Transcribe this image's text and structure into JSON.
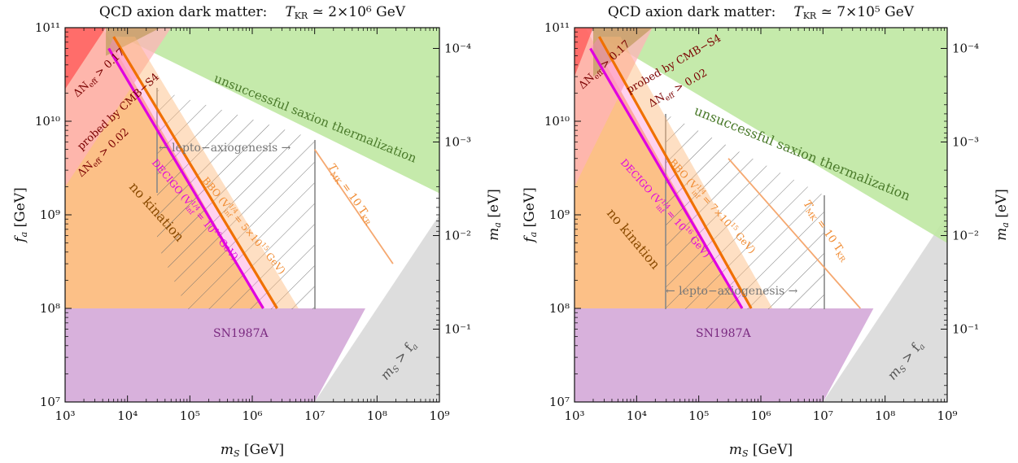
{
  "chart_data": [
    {
      "type": "area",
      "title": "QCD axion dark matter:   T_KR ≃ 2×10^6 GeV",
      "title_text": "QCD axion dark matter:",
      "title_param": "T",
      "title_param_sub": "KR",
      "title_value": " ≃ 2×10⁶ GeV",
      "xlabel": "m_S [GeV]",
      "xlabel_var": "m",
      "xlabel_sub": "S",
      "xlabel_unit": " [GeV]",
      "ylabel": "f_a [GeV]",
      "ylabel_var": "f",
      "ylabel_sub": "a",
      "ylabel_unit": " [GeV]",
      "y2label": "m_a [eV]",
      "y2label_var": "m",
      "y2label_sub": "a",
      "y2label_unit": " [eV]",
      "xscale": "log",
      "yscale": "log",
      "xlim": [
        1000,
        1000000000
      ],
      "ylim": [
        10000000,
        100000000000
      ],
      "x_tick_labels": [
        "10³",
        "10⁴",
        "10⁵",
        "10⁶",
        "10⁷",
        "10⁸",
        "10⁹"
      ],
      "y_tick_labels": [
        "10⁷",
        "10⁸",
        "10⁹",
        "10¹⁰",
        "10¹¹"
      ],
      "y2_tick_labels": [
        "10⁻⁴",
        "10⁻³",
        "10⁻²",
        "10⁻¹"
      ],
      "y2_tick_values_fa": [
        60000000000,
        6000000000,
        600000000,
        60000000
      ],
      "regions": [
        {
          "name": "SN1987A",
          "color": "#d4a9d8",
          "label": "SN1987A",
          "points": [
            [
              1000,
              10000000
            ],
            [
              1000,
              100000000
            ],
            [
              65000000,
              100000000
            ],
            [
              10000000,
              10000000
            ]
          ]
        },
        {
          "name": "m_S > f_a",
          "color": "#d9d9d9",
          "label": "m_S > f_a",
          "points": [
            [
              10000000,
              10000000
            ],
            [
              1000000000,
              1000000000
            ],
            [
              1000000000,
              10000000
            ]
          ]
        },
        {
          "name": "unsuccessful saxion thermalization",
          "color": "#bfe8a2",
          "label": "unsuccessful saxion thermalization",
          "points": [
            [
              4000,
              100000000000
            ],
            [
              1000000000,
              100000000000
            ],
            [
              1000000000,
              1700000000
            ]
          ]
        },
        {
          "name": "no kination",
          "color": "#fcb97a",
          "label": "no kination",
          "points": [
            [
              1000,
              2000000000
            ],
            [
              1000,
              100000000
            ],
            [
              1500000,
              100000000
            ],
            [
              4000,
              100000000000
            ],
            [
              1000,
              100000000000
            ]
          ]
        },
        {
          "name": "DeltaNeff > 0.17",
          "color": "#ff6868",
          "label": "ΔN_eff > 0.17",
          "points": [
            [
              1000,
              100000000000
            ],
            [
              4500,
              100000000000
            ],
            [
              1000,
              22000000000
            ]
          ]
        },
        {
          "name": "probed by CMB-S4",
          "color": "#ffb3b8",
          "label": "probed by CMB-S4",
          "points": [
            [
              4500,
              100000000000
            ],
            [
              50000,
              100000000000
            ],
            [
              1000,
              2000000000
            ],
            [
              1000,
              22000000000
            ]
          ]
        },
        {
          "name": "CMB-S4 tan band",
          "color": "#c8a06a",
          "points": [
            [
              4500,
              100000000000
            ],
            [
              34000,
              100000000000
            ],
            [
              4500,
              50000000000
            ]
          ]
        }
      ],
      "labels": [
        {
          "text": "ΔN_eff > 0.17",
          "color": "#7a0000"
        },
        {
          "text": "ΔN_eff > 0.02",
          "color": "#7a0000"
        },
        {
          "text": "probed by CMB-S4",
          "color": "#7a0000"
        },
        {
          "text": "unsuccessful saxion thermalization",
          "color": "#4a7a2a"
        },
        {
          "text": "no kination",
          "color": "#8a4a00"
        },
        {
          "text": "SN1987A",
          "color": "#7a2a80"
        },
        {
          "text": "m_S > f_a",
          "color": "#555555"
        },
        {
          "text": "← lepto-axiogenesis →",
          "color": "#777777"
        },
        {
          "text": "DECIGO (V_inf^1/4 = 10^16 GeV)",
          "color": "#e000e0"
        },
        {
          "text": "BBO (V_inf^1/4 = 5×10^15 GeV)",
          "color": "#f08a30"
        },
        {
          "text": "T_MK = 10 T_KR",
          "color": "#f08a30"
        }
      ],
      "lines": [
        {
          "name": "DECIGO",
          "color": "#e000e0",
          "points": [
            [
              5000,
              60000000000
            ],
            [
              1500000,
              100000000
            ]
          ]
        },
        {
          "name": "BBO",
          "color": "#f07000",
          "points": [
            [
              6000,
              80000000000
            ],
            [
              2500000,
              100000000
            ]
          ]
        },
        {
          "name": "T_MK = 10 T_KR",
          "color": "#f5a870",
          "points": [
            [
              10000000,
              5000000000
            ],
            [
              180000000,
              300000000
            ]
          ]
        }
      ],
      "lepto_axiogenesis_x": [
        30000,
        10000000
      ]
    },
    {
      "type": "area",
      "title": "QCD axion dark matter:   T_KR ≃ 7×10^5 GeV",
      "title_text": "QCD axion dark matter:",
      "title_param": "T",
      "title_param_sub": "KR",
      "title_value": " ≃ 7×10⁵ GeV",
      "xlabel": "m_S [GeV]",
      "xlabel_var": "m",
      "xlabel_sub": "S",
      "xlabel_unit": " [GeV]",
      "ylabel": "f_a [GeV]",
      "ylabel_var": "f",
      "ylabel_sub": "a",
      "ylabel_unit": " [GeV]",
      "y2label": "m_a [eV]",
      "y2label_var": "m",
      "y2label_sub": "a",
      "y2label_unit": " [eV]",
      "xscale": "log",
      "yscale": "log",
      "xlim": [
        1000,
        1000000000
      ],
      "ylim": [
        10000000,
        100000000000
      ],
      "x_tick_labels": [
        "10³",
        "10⁴",
        "10⁵",
        "10⁶",
        "10⁷",
        "10⁸",
        "10⁹"
      ],
      "y_tick_labels": [
        "10⁷",
        "10⁸",
        "10⁹",
        "10¹⁰",
        "10¹¹"
      ],
      "y2_tick_labels": [
        "10⁻⁴",
        "10⁻³",
        "10⁻²",
        "10⁻¹"
      ],
      "y2_tick_values_fa": [
        60000000000,
        6000000000,
        600000000,
        60000000
      ],
      "regions": [
        {
          "name": "SN1987A",
          "color": "#d4a9d8",
          "label": "SN1987A",
          "points": [
            [
              1000,
              10000000
            ],
            [
              1000,
              100000000
            ],
            [
              65000000,
              100000000
            ],
            [
              10000000,
              10000000
            ]
          ]
        },
        {
          "name": "m_S > f_a",
          "color": "#d9d9d9",
          "label": "m_S > f_a",
          "points": [
            [
              10000000,
              10000000
            ],
            [
              1000000000,
              1000000000
            ],
            [
              1000000000,
              10000000
            ]
          ]
        },
        {
          "name": "unsuccessful saxion thermalization",
          "color": "#bfe8a2",
          "label": "unsuccessful saxion thermalization",
          "points": [
            [
              1500,
              100000000000
            ],
            [
              1000000000,
              100000000000
            ],
            [
              1000000000,
              500000000
            ]
          ]
        },
        {
          "name": "no kination",
          "color": "#fcb97a",
          "label": "no kination",
          "points": [
            [
              1000,
              2000000000
            ],
            [
              1000,
              100000000
            ],
            [
              500000,
              100000000
            ],
            [
              1500,
              100000000000
            ],
            [
              1000,
              100000000000
            ]
          ]
        },
        {
          "name": "DeltaNeff > 0.17",
          "color": "#ff6868",
          "label": "ΔN_eff > 0.17",
          "points": [
            [
              1000,
              100000000000
            ],
            [
              2000,
              100000000000
            ],
            [
              1000,
              30000000000
            ]
          ]
        },
        {
          "name": "probed by CMB-S4",
          "color": "#ffb3b8",
          "label": "probed by CMB-S4",
          "points": [
            [
              2000,
              100000000000
            ],
            [
              18000,
              100000000000
            ],
            [
              1000,
              2000000000
            ],
            [
              1000,
              30000000000
            ]
          ]
        },
        {
          "name": "CMB-S4 tan band",
          "color": "#c8a06a",
          "points": [
            [
              2000,
              100000000000
            ],
            [
              18000,
              100000000000
            ],
            [
              2000,
              30000000000
            ]
          ]
        }
      ],
      "labels": [
        {
          "text": "ΔN_eff > 0.17",
          "color": "#7a0000"
        },
        {
          "text": "probed by CMB-S4",
          "color": "#7a0000"
        },
        {
          "text": "ΔN_eff > 0.02",
          "color": "#7a0000"
        },
        {
          "text": "unsuccessful saxion thermalization",
          "color": "#4a7a2a"
        },
        {
          "text": "no kination",
          "color": "#8a4a00"
        },
        {
          "text": "SN1987A",
          "color": "#7a2a80"
        },
        {
          "text": "m_S > f_a",
          "color": "#555555"
        },
        {
          "text": "← lepto-axiogenesis →",
          "color": "#777777"
        },
        {
          "text": "DECIGO (V_inf^1/4 = 10^16 GeV)",
          "color": "#e000e0"
        },
        {
          "text": "BBO (V_inf^1/4 = 7×10^15 GeV)",
          "color": "#f08a30"
        },
        {
          "text": "T_MK = 10 T_KR",
          "color": "#f08a30"
        }
      ],
      "lines": [
        {
          "name": "DECIGO",
          "color": "#e000e0",
          "points": [
            [
              1800,
              60000000000
            ],
            [
              500000,
              100000000
            ]
          ]
        },
        {
          "name": "BBO",
          "color": "#f07000",
          "points": [
            [
              2500,
              80000000000
            ],
            [
              700000,
              100000000
            ]
          ]
        },
        {
          "name": "T_MK = 10 T_KR",
          "color": "#f5a870",
          "points": [
            [
              300000,
              4000000000
            ],
            [
              40000000,
              100000000
            ]
          ]
        }
      ],
      "lepto_axiogenesis_x": [
        30000,
        10000000
      ]
    }
  ],
  "panels": [
    {
      "title_text": "QCD axion dark matter:",
      "title_param": "T",
      "title_param_sub": "KR",
      "title_value": " ≃ 2×10⁶ GeV",
      "xlabel_var": "m",
      "xlabel_sub": "S",
      "xlabel_unit": " [GeV]",
      "ylabel_var": "f",
      "ylabel_sub": "a",
      "ylabel_unit": " [GeV]",
      "y2label_var": "m",
      "y2label_sub": "a",
      "y2label_unit": " [eV]",
      "labels": {
        "neff017": "ΔN",
        "neff017_sub": "eff",
        "neff017_val": " > 0.17",
        "neff002": "ΔN",
        "neff002_sub": "eff",
        "neff002_val": " > 0.02",
        "cmbs4": "probed by CMB−S4",
        "saxion": "unsuccessful saxion thermalization",
        "nokination": "no kination",
        "sn": "SN1987A",
        "msfa": "m",
        "msfa_sub": "S",
        "msfa_rest": " > f",
        "msfa_sub2": "a",
        "lepto": "← lepto−axiogenesis →",
        "decigo": "DECIGO  (V",
        "decigo_sup": "1/4",
        "decigo_sub": "inf",
        "decigo_rest": " = 10",
        "decigo_exp": "16",
        "decigo_unit": " GeV)",
        "bbo": "BBO  (V",
        "bbo_sup": "1/4",
        "bbo_sub": "inf",
        "bbo_rest": " = 5×10",
        "bbo_exp": "15",
        "bbo_unit": " GeV)",
        "tmk": "T",
        "tmk_sub": "MK",
        "tmk_rest": " = 10 T",
        "tmk_sub2": "KR"
      }
    },
    {
      "title_text": "QCD axion dark matter:",
      "title_param": "T",
      "title_param_sub": "KR",
      "title_value": " ≃ 7×10⁵ GeV",
      "xlabel_var": "m",
      "xlabel_sub": "S",
      "xlabel_unit": " [GeV]",
      "ylabel_var": "f",
      "ylabel_sub": "a",
      "ylabel_unit": " [GeV]",
      "y2label_var": "m",
      "y2label_sub": "a",
      "y2label_unit": " [eV]",
      "labels": {
        "neff017": "ΔN",
        "neff017_sub": "eff",
        "neff017_val": " > 0.17",
        "neff002": "ΔN",
        "neff002_sub": "eff",
        "neff002_val": " > 0.02",
        "cmbs4": "probed by CMB−S4",
        "saxion": "unsuccessful saxion thermalization",
        "nokination": "no kination",
        "sn": "SN1987A",
        "msfa": "m",
        "msfa_sub": "S",
        "msfa_rest": " > f",
        "msfa_sub2": "a",
        "lepto": "← lepto−axiogenesis →",
        "decigo": "DECIGO  (V",
        "decigo_sup": "1/4",
        "decigo_sub": "inf",
        "decigo_rest": " = 10",
        "decigo_exp": "16",
        "decigo_unit": " GeV)",
        "bbo": "BBO  (V",
        "bbo_sup": "1/4",
        "bbo_sub": "inf",
        "bbo_rest": " = 7×10",
        "bbo_exp": "15",
        "bbo_unit": " GeV)",
        "tmk": "T",
        "tmk_sub": "MK",
        "tmk_rest": " = 10 T",
        "tmk_sub2": "KR"
      }
    }
  ]
}
